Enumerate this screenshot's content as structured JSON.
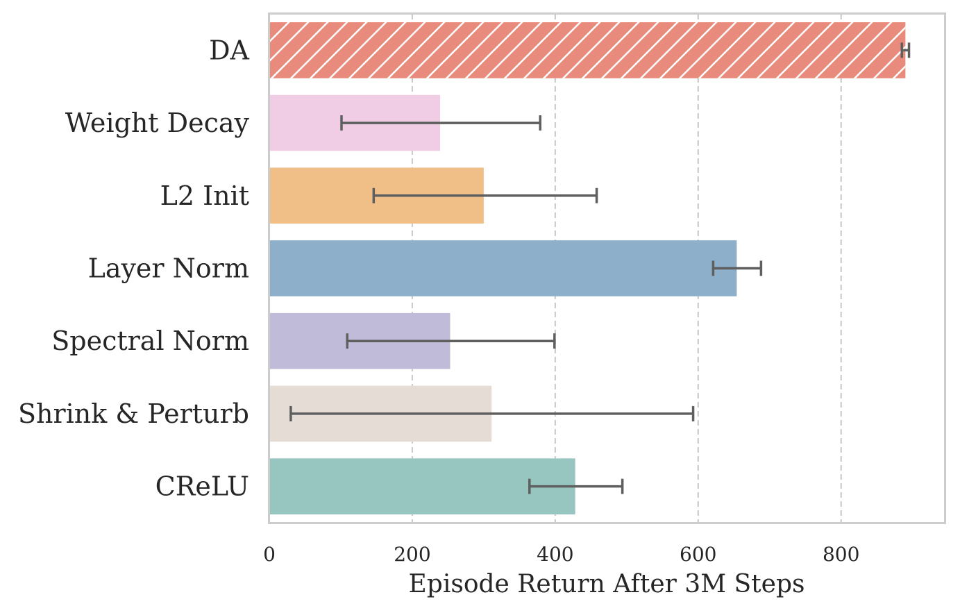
{
  "chart_data": {
    "type": "bar",
    "orientation": "horizontal",
    "categories": [
      "DA",
      "Weight Decay",
      "L2 Init",
      "Layer Norm",
      "Spectral Norm",
      "Shrink & Perturb",
      "CReLU"
    ],
    "values": [
      890,
      239,
      300,
      654,
      253,
      311,
      428
    ],
    "error_low": [
      885,
      101,
      146,
      621,
      109,
      30,
      364
    ],
    "error_high": [
      895,
      379,
      458,
      688,
      399,
      593,
      494
    ],
    "colors": [
      "#e98b7c",
      "#f1cde5",
      "#f0bf88",
      "#8eafca",
      "#c0bbd9",
      "#e5dcd6",
      "#97c6c1"
    ],
    "hatched": [
      true,
      false,
      false,
      false,
      false,
      false,
      false
    ],
    "xlabel": "Episode Return After 3M Steps",
    "xticks": [
      0,
      200,
      400,
      600,
      800
    ],
    "xlim": [
      0,
      945
    ],
    "grid": "vertical dashed"
  }
}
